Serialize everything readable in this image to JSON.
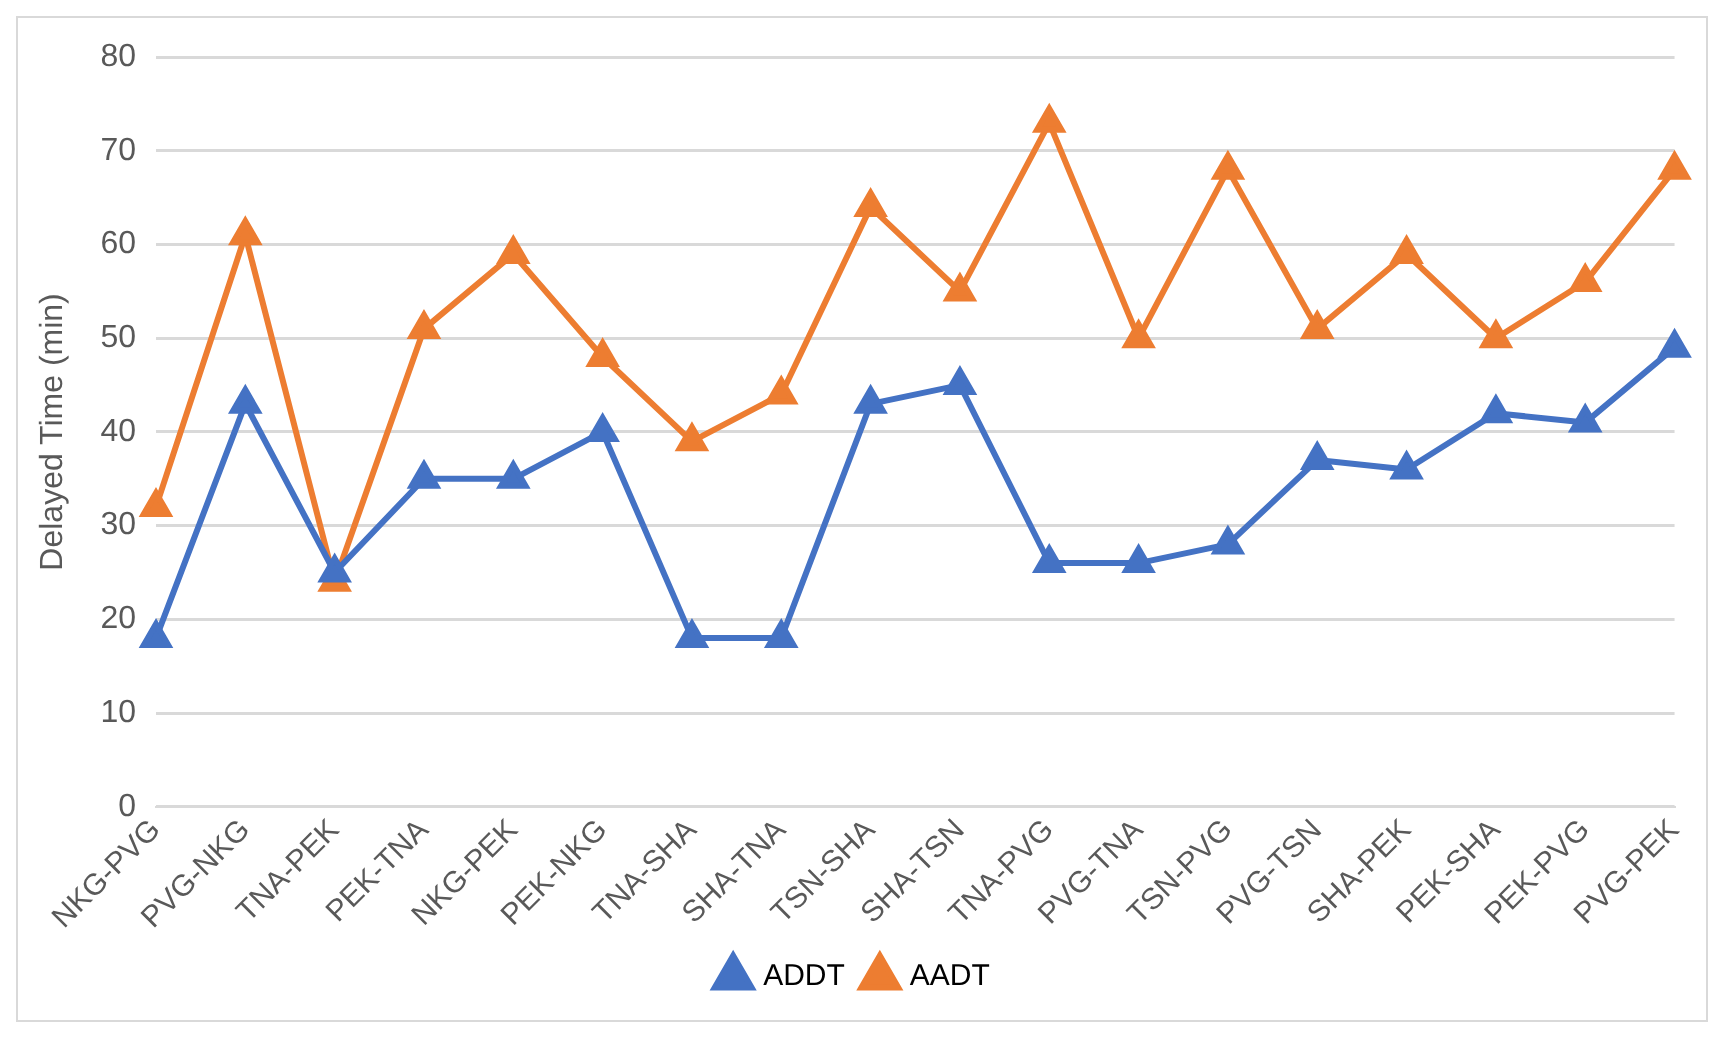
{
  "chart_data": {
    "type": "line",
    "ylabel": "Delayed Time (min)",
    "categories": [
      "NKG-PVG",
      "PVG-NKG",
      "TNA-PEK",
      "PEK-TNA",
      "NKG-PEK",
      "PEK-NKG",
      "TNA-SHA",
      "SHA-TNA",
      "TSN-SHA",
      "SHA-TSN",
      "TNA-PVG",
      "PVG-TNA",
      "TSN-PVG",
      "PVG-TSN",
      "SHA-PEK",
      "PEK-SHA",
      "PEK-PVG",
      "PVG-PEK"
    ],
    "series": [
      {
        "name": "ADDT",
        "color": "#4472c4",
        "values": [
          18,
          43,
          25,
          35,
          35,
          40,
          18,
          18,
          43,
          45,
          26,
          26,
          28,
          37,
          36,
          42,
          41,
          49
        ]
      },
      {
        "name": "AADT",
        "color": "#ed7d31",
        "values": [
          32,
          61,
          24,
          51,
          59,
          48,
          39,
          44,
          64,
          55,
          73,
          50,
          68,
          51,
          59,
          50,
          56,
          68
        ]
      }
    ],
    "ylim": [
      0,
      80
    ],
    "yticks": [
      0,
      10,
      20,
      30,
      40,
      50,
      60,
      70,
      80
    ],
    "grid": "y",
    "legend": "bottom",
    "marker": "triangle",
    "line_style": "solid"
  }
}
